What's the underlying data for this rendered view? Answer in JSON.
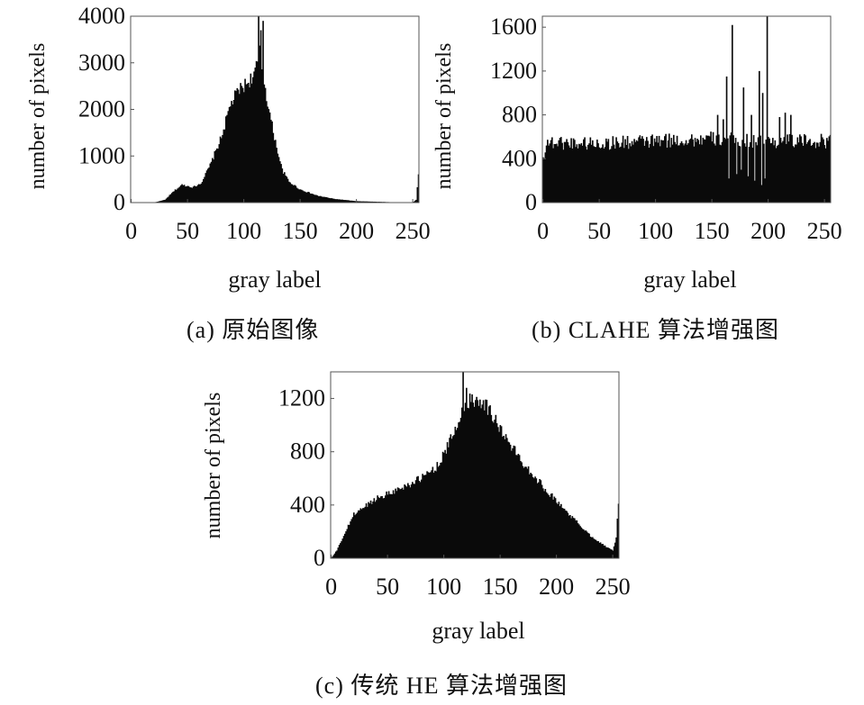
{
  "chart_data": [
    {
      "id": "a",
      "type": "bar",
      "caption": "(a)  原始图像",
      "xlabel": "gray label",
      "ylabel": "number of pixels",
      "xlim": [
        0,
        255
      ],
      "ylim": [
        0,
        4000
      ],
      "xticks": [
        0,
        50,
        100,
        150,
        200,
        250
      ],
      "yticks": [
        0,
        1000,
        2000,
        3000,
        4000
      ],
      "profile": [
        [
          0,
          0
        ],
        [
          20,
          0
        ],
        [
          30,
          60
        ],
        [
          38,
          250
        ],
        [
          45,
          380
        ],
        [
          55,
          330
        ],
        [
          62,
          420
        ],
        [
          70,
          800
        ],
        [
          80,
          1400
        ],
        [
          88,
          2100
        ],
        [
          95,
          2400
        ],
        [
          102,
          2550
        ],
        [
          106,
          2650
        ],
        [
          110,
          2800
        ],
        [
          114,
          3200
        ],
        [
          118,
          2600
        ],
        [
          122,
          2000
        ],
        [
          128,
          1300
        ],
        [
          134,
          700
        ],
        [
          140,
          450
        ],
        [
          150,
          280
        ],
        [
          165,
          150
        ],
        [
          180,
          80
        ],
        [
          200,
          30
        ],
        [
          230,
          10
        ],
        [
          250,
          5
        ],
        [
          253,
          60
        ],
        [
          255,
          600
        ]
      ],
      "spikes": [
        [
          113,
          4000
        ],
        [
          115,
          3700
        ],
        [
          117,
          3900
        ]
      ],
      "noise": 0.06
    },
    {
      "id": "b",
      "type": "bar",
      "caption": "(b)  CLAHE 算法增强图",
      "xlabel": "gray label",
      "ylabel": "number of pixels",
      "xlim": [
        0,
        255
      ],
      "ylim": [
        0,
        1700
      ],
      "xticks": [
        0,
        50,
        100,
        150,
        200,
        250
      ],
      "yticks": [
        0,
        400,
        800,
        1200,
        1600
      ],
      "profile": [
        [
          0,
          400
        ],
        [
          3,
          550
        ],
        [
          50,
          540
        ],
        [
          100,
          560
        ],
        [
          150,
          580
        ],
        [
          200,
          560
        ],
        [
          255,
          560
        ]
      ],
      "spikes": [
        [
          155,
          800
        ],
        [
          160,
          760
        ],
        [
          163,
          1150
        ],
        [
          168,
          1620
        ],
        [
          172,
          850
        ],
        [
          178,
          1050
        ],
        [
          185,
          800
        ],
        [
          192,
          1200
        ],
        [
          195,
          1000
        ],
        [
          199,
          1700
        ],
        [
          210,
          780
        ],
        [
          215,
          820
        ],
        [
          220,
          800
        ]
      ],
      "dips": [
        [
          165,
          220
        ],
        [
          172,
          260
        ],
        [
          176,
          300
        ],
        [
          182,
          240
        ],
        [
          188,
          200
        ],
        [
          194,
          160
        ],
        [
          197,
          220
        ]
      ],
      "noise": 0.12
    },
    {
      "id": "c",
      "type": "bar",
      "caption": "(c)  传统 HE 算法增强图",
      "xlabel": "gray label",
      "ylabel": "number of pixels",
      "xlim": [
        0,
        255
      ],
      "ylim": [
        0,
        1400
      ],
      "xticks": [
        0,
        50,
        100,
        150,
        200,
        250
      ],
      "yticks": [
        0,
        400,
        800,
        1200
      ],
      "profile": [
        [
          0,
          0
        ],
        [
          5,
          60
        ],
        [
          20,
          330
        ],
        [
          40,
          450
        ],
        [
          60,
          520
        ],
        [
          80,
          600
        ],
        [
          95,
          700
        ],
        [
          105,
          870
        ],
        [
          112,
          1000
        ],
        [
          118,
          1150
        ],
        [
          125,
          1200
        ],
        [
          135,
          1180
        ],
        [
          145,
          1050
        ],
        [
          155,
          900
        ],
        [
          170,
          720
        ],
        [
          190,
          520
        ],
        [
          210,
          340
        ],
        [
          230,
          170
        ],
        [
          245,
          80
        ],
        [
          250,
          60
        ],
        [
          253,
          150
        ],
        [
          255,
          420
        ]
      ],
      "spikes": [
        [
          117,
          1400
        ],
        [
          120,
          1280
        ]
      ],
      "noise": 0.05
    }
  ]
}
